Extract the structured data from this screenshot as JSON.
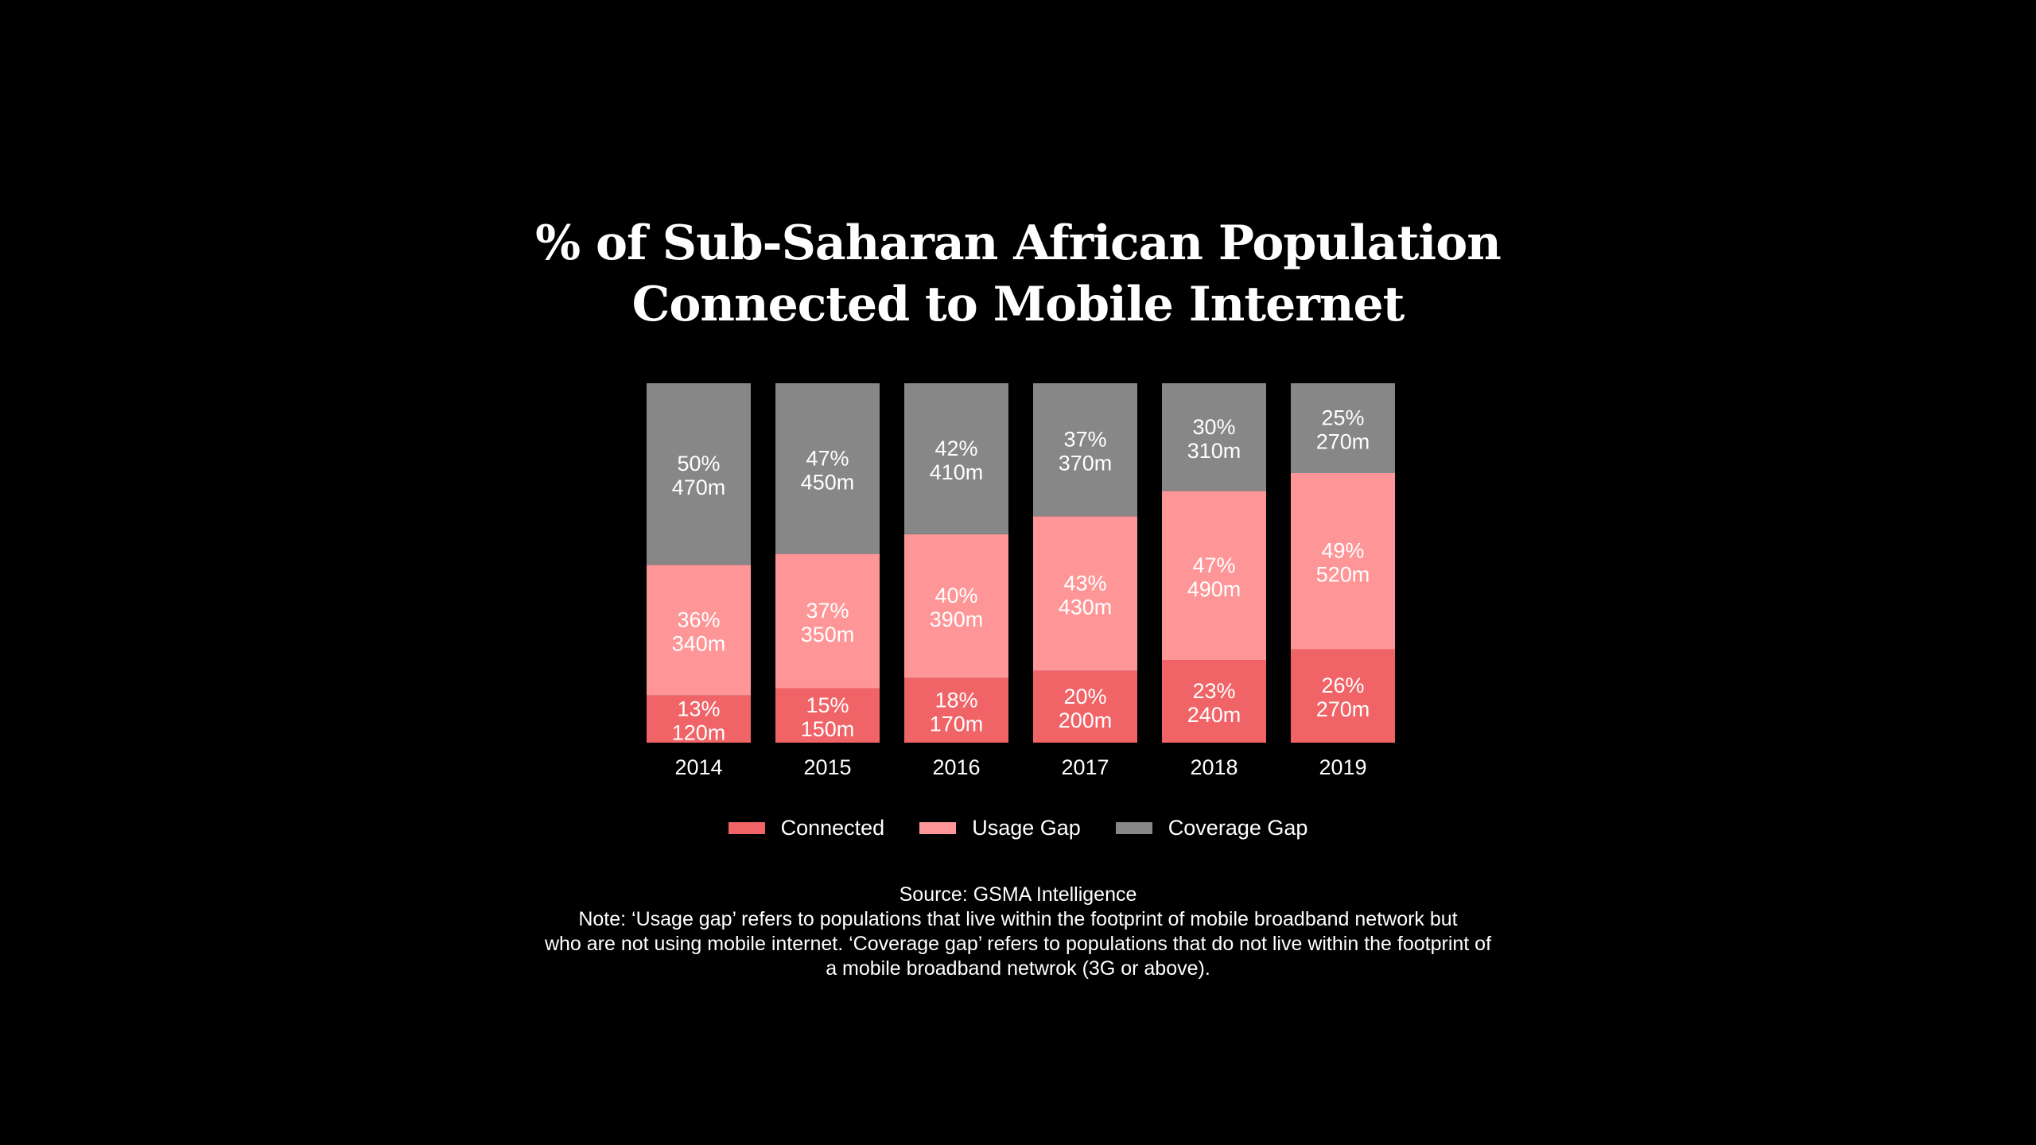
{
  "chart_data": {
    "type": "bar",
    "stacked": true,
    "title_lines": [
      "% of Sub-Saharan African Population",
      "Connected to Mobile Internet"
    ],
    "categories": [
      "2014",
      "2015",
      "2016",
      "2017",
      "2018",
      "2019"
    ],
    "series": [
      {
        "name": "Connected",
        "color": "#f06467",
        "percent": [
          13,
          15,
          18,
          20,
          23,
          26
        ],
        "population": [
          "120m",
          "150m",
          "170m",
          "200m",
          "240m",
          "270m"
        ]
      },
      {
        "name": "Usage Gap",
        "color": "#fe9698",
        "percent": [
          36,
          37,
          40,
          43,
          47,
          49
        ],
        "population": [
          "340m",
          "350m",
          "390m",
          "430m",
          "490m",
          "520m"
        ]
      },
      {
        "name": "Coverage Gap",
        "color": "#878787",
        "percent": [
          50,
          47,
          42,
          37,
          30,
          25
        ],
        "population": [
          "470m",
          "450m",
          "410m",
          "370m",
          "310m",
          "270m"
        ]
      }
    ],
    "legend_position": "bottom",
    "grid": false
  },
  "source": "Source: GSMA Intelligence",
  "note_lines": [
    "Note: ‘Usage gap’ refers to populations that live within the footprint of mobile broadband network but",
    "who are not using mobile internet. ‘Coverage gap’ refers to populations that do not live within the footprint of",
    "a mobile broadband netwrok (3G or above)."
  ]
}
